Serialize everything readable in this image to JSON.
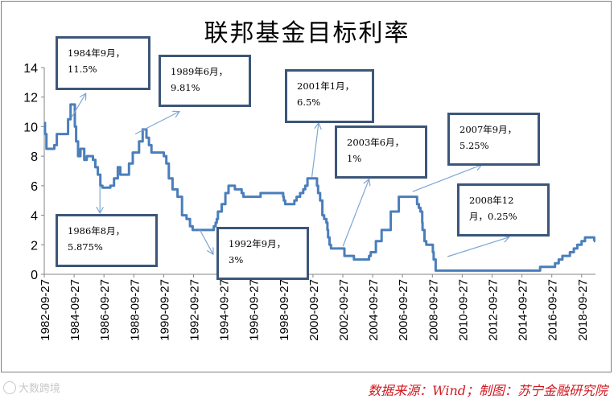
{
  "chart_data": {
    "type": "line",
    "title": "联邦基金目标利率",
    "xlabel": "",
    "ylabel": "",
    "ylim": [
      0,
      14
    ],
    "grid": false,
    "y_ticks": [
      "0",
      "2",
      "4",
      "6",
      "8",
      "10",
      "12",
      "14"
    ],
    "x_tick_labels": [
      "1982-09-27",
      "1984-09-27",
      "1986-09-27",
      "1988-09-27",
      "1990-09-27",
      "1992-09-27",
      "1994-09-27",
      "1996-09-27",
      "1998-09-27",
      "2000-09-27",
      "2002-09-27",
      "2004-09-27",
      "2006-09-27",
      "2008-09-27",
      "2010-09-27",
      "2012-09-27",
      "2014-09-27",
      "2016-09-27",
      "2018-09-27"
    ],
    "series": [
      {
        "color": "#4a7ebb",
        "x": [
          "1982-09-27",
          "1982-10-15",
          "1982-11-20",
          "1983-04-01",
          "1983-06-01",
          "1983-08-01",
          "1983-12-01",
          "1984-03-01",
          "1984-05-01",
          "1984-07-01",
          "1984-09-01",
          "1984-10-15",
          "1984-11-15",
          "1985-01-01",
          "1985-03-01",
          "1985-06-01",
          "1985-08-01",
          "1986-01-01",
          "1986-03-01",
          "1986-05-01",
          "1986-07-01",
          "1986-08-21",
          "1986-12-01",
          "1987-03-01",
          "1987-06-01",
          "1987-09-01",
          "1987-11-01",
          "1988-03-01",
          "1988-06-01",
          "1988-09-01",
          "1988-11-01",
          "1989-02-01",
          "1989-05-01",
          "1989-06-06",
          "1989-08-01",
          "1989-10-01",
          "1989-12-01",
          "1990-07-01",
          "1990-10-01",
          "1990-12-01",
          "1991-02-01",
          "1991-05-01",
          "1991-09-01",
          "1991-12-20",
          "1992-04-09",
          "1992-07-02",
          "1992-09-04",
          "1994-02-04",
          "1994-03-22",
          "1994-04-18",
          "1994-05-17",
          "1994-08-16",
          "1994-11-15",
          "1995-02-01",
          "1995-07-06",
          "1995-12-19",
          "1996-01-31",
          "1997-03-25",
          "1998-09-29",
          "1998-10-15",
          "1998-11-17",
          "1999-06-30",
          "1999-08-24",
          "1999-11-16",
          "2000-02-02",
          "2000-03-21",
          "2000-05-16",
          "2001-01-03",
          "2001-01-31",
          "2001-03-20",
          "2001-05-15",
          "2001-06-27",
          "2001-08-21",
          "2001-09-17",
          "2001-10-02",
          "2001-11-06",
          "2001-12-11",
          "2002-11-06",
          "2003-06-25",
          "2004-06-30",
          "2004-08-10",
          "2004-12-14",
          "2005-05-03",
          "2005-12-13",
          "2006-06-29",
          "2007-09-18",
          "2007-10-31",
          "2007-12-11",
          "2008-01-22",
          "2008-01-30",
          "2008-03-18",
          "2008-04-30",
          "2008-10-08",
          "2008-10-29",
          "2008-12-16",
          "2015-12-16",
          "2016-12-14",
          "2017-03-15",
          "2017-06-14",
          "2017-12-13",
          "2018-03-21",
          "2018-06-13",
          "2018-09-26",
          "2018-12-19",
          "2019-07-31"
        ],
        "values": [
          10.25,
          9.5,
          8.5,
          8.5,
          8.75,
          9.5,
          9.5,
          9.5,
          10.5,
          11.5,
          11.5,
          10.0,
          9.0,
          8.0,
          8.5,
          7.75,
          8.0,
          7.75,
          7.25,
          6.75,
          6.0,
          5.875,
          5.875,
          6.0,
          6.5,
          7.25,
          6.75,
          6.75,
          7.5,
          8.25,
          8.25,
          9.0,
          9.81,
          9.81,
          9.25,
          8.75,
          8.25,
          8.25,
          8.0,
          7.5,
          6.5,
          5.75,
          5.25,
          4.0,
          3.75,
          3.25,
          3.0,
          3.25,
          3.5,
          3.75,
          4.25,
          4.75,
          5.5,
          6.0,
          5.75,
          5.5,
          5.25,
          5.5,
          5.25,
          5.0,
          4.75,
          5.0,
          5.25,
          5.5,
          5.75,
          6.0,
          6.5,
          6.0,
          5.5,
          5.0,
          4.0,
          3.75,
          3.5,
          3.0,
          2.5,
          2.0,
          1.75,
          1.25,
          1.0,
          1.25,
          1.5,
          2.25,
          3.0,
          4.25,
          5.25,
          4.75,
          4.5,
          4.25,
          3.5,
          3.0,
          2.25,
          2.0,
          1.5,
          1.0,
          0.25,
          0.5,
          0.75,
          1.0,
          1.25,
          1.5,
          1.75,
          2.0,
          2.25,
          2.5,
          2.25
        ]
      }
    ],
    "annotations": [
      {
        "line1": "1984年9月，",
        "line2": "11.5%"
      },
      {
        "line1": "1989年6月，",
        "line2": "9.81%"
      },
      {
        "line1": "2001年1月，",
        "line2": "6.5%"
      },
      {
        "line1": "2003年6月，",
        "line2": "1%"
      },
      {
        "line1": "2007年9月，",
        "line2": "5.25%"
      },
      {
        "line1": "1986年8月，",
        "line2": "5.875%"
      },
      {
        "line1": "1992年9月，",
        "line2": "3%"
      },
      {
        "line1": "2008年12",
        "line2": "月，0.25%"
      }
    ],
    "colors": {
      "line": "#4a7ebb",
      "annotation_border": "#3c5679",
      "arrow": "#7ea6d6",
      "axis": "#868686"
    }
  },
  "footer": {
    "source_note": "数据来源：Wind；制图：苏宁金融研究院",
    "watermark": "大数跨境"
  }
}
